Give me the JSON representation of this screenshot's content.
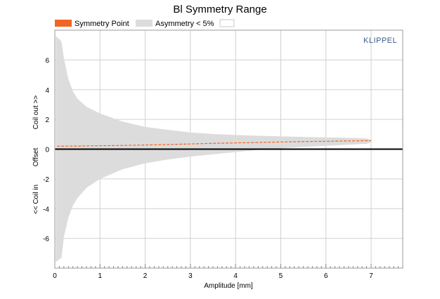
{
  "chart_data": {
    "type": "area",
    "title": "Bl Symmetry Range",
    "xlabel": "Amplitude [mm]",
    "ylabel_parts": [
      "<< Coil in",
      "Offset",
      "Coil out >>"
    ],
    "brand": "KLIPPEL",
    "xlim": [
      0,
      7.7
    ],
    "ylim": [
      -8,
      8
    ],
    "xticks": [
      0,
      1,
      2,
      3,
      4,
      5,
      6,
      7
    ],
    "yticks": [
      -6,
      -4,
      -2,
      0,
      2,
      4,
      6
    ],
    "grid": true,
    "legend_position": "top",
    "legend": [
      {
        "label": "Symmetry Point",
        "color": "#f26522",
        "kind": "line"
      },
      {
        "label": "Asymmetry < 5%",
        "color": "#dcdcdc",
        "kind": "area"
      },
      {
        "label": "",
        "color": "#ffffff",
        "kind": "empty"
      }
    ],
    "series": [
      {
        "name": "Symmetry Point",
        "x": [
          0.05,
          0.5,
          1.0,
          1.5,
          2.0,
          2.5,
          3.0,
          3.5,
          4.0,
          4.5,
          5.0,
          5.5,
          6.0,
          6.5,
          7.0
        ],
        "y": [
          0.2,
          0.21,
          0.23,
          0.25,
          0.28,
          0.31,
          0.35,
          0.39,
          0.42,
          0.45,
          0.48,
          0.51,
          0.53,
          0.55,
          0.57
        ]
      },
      {
        "name": "Asymmetry < 5%",
        "x": [
          0.02,
          0.1,
          0.15,
          0.2,
          0.3,
          0.4,
          0.5,
          0.7,
          1.0,
          1.5,
          2.0,
          2.5,
          3.0,
          3.5,
          4.0,
          4.5,
          5.0,
          5.5,
          6.0,
          6.5,
          6.9,
          7.0
        ],
        "upper": [
          7.6,
          7.4,
          7.2,
          6.1,
          4.7,
          3.9,
          3.4,
          2.85,
          2.4,
          1.85,
          1.5,
          1.3,
          1.12,
          1.02,
          0.95,
          0.9,
          0.86,
          0.82,
          0.79,
          0.76,
          0.72,
          0.62
        ],
        "lower": [
          -7.6,
          -7.4,
          -7.3,
          -5.9,
          -4.6,
          -3.8,
          -3.3,
          -2.6,
          -2.0,
          -1.35,
          -0.95,
          -0.7,
          -0.5,
          -0.35,
          -0.2,
          -0.05,
          0.05,
          0.15,
          0.22,
          0.3,
          0.36,
          0.45
        ]
      },
      {
        "name": "Reference line",
        "x": [
          0,
          7.7
        ],
        "y": [
          0,
          0
        ]
      }
    ],
    "colors": {
      "symmetry": "#f26522",
      "area": "#dcdcdc",
      "zero_line": "#000000",
      "grid": "#d0d0d0",
      "frame": "#9a9a9a"
    }
  }
}
